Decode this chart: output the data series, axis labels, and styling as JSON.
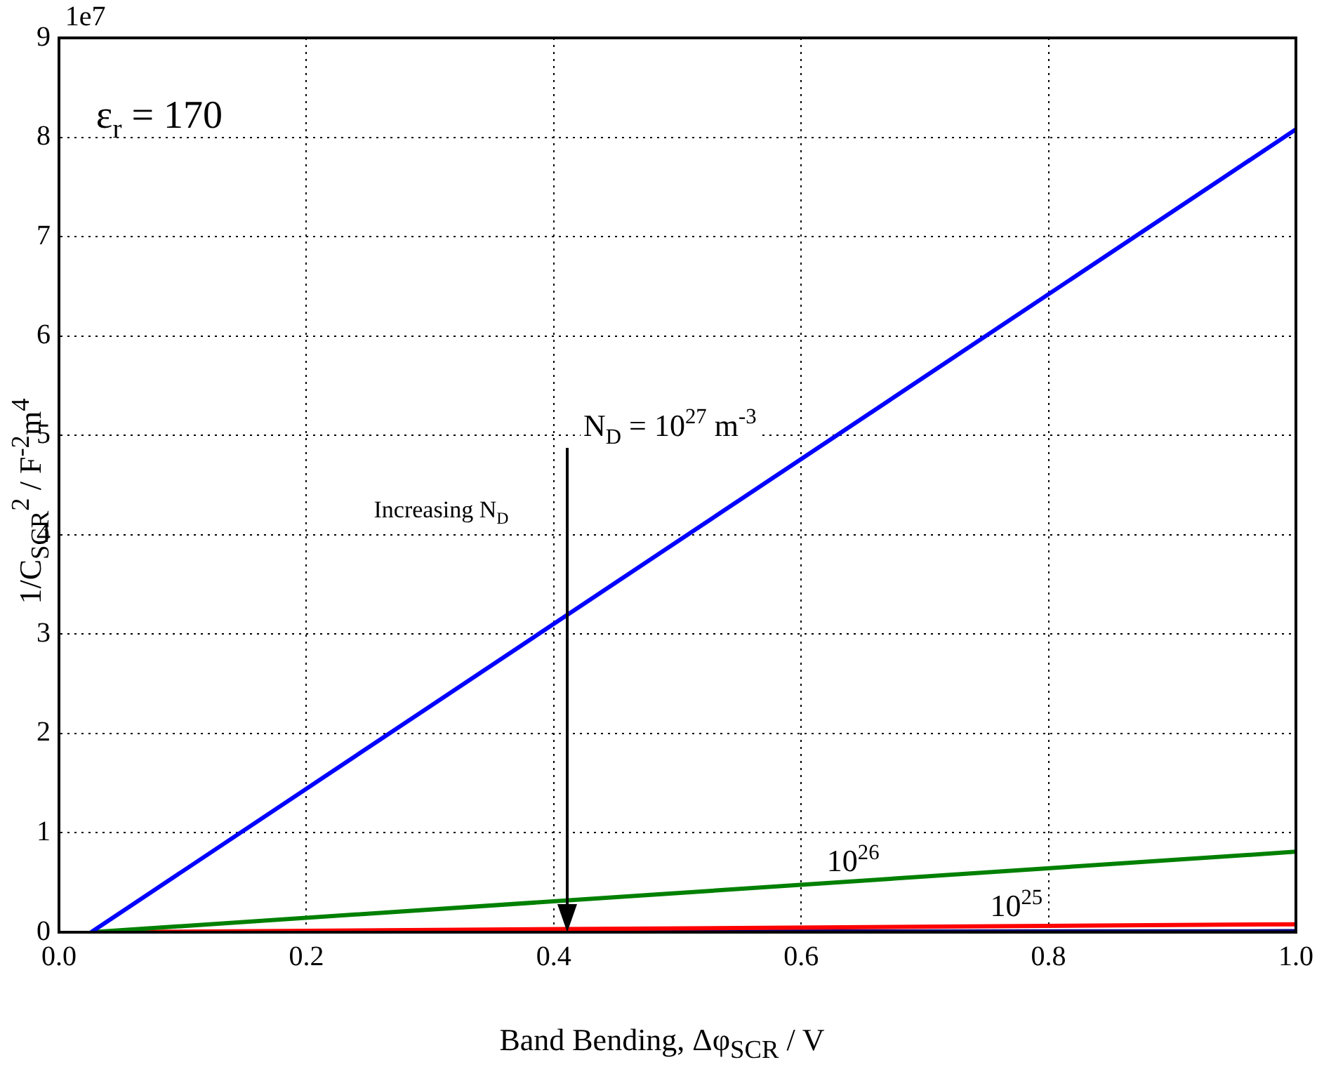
{
  "chart_data": {
    "type": "line",
    "xlabel": "Band Bending, Δφ$_{SCR}$ / V",
    "ylabel": "1/C$_{SCR}$$^{2}$ / F$^{-2}$m$^{4}$",
    "x": [
      0.026,
      1.0
    ],
    "series": [
      {
        "color": "#0000ff",
        "values": [
          0,
          8.08
        ]
      },
      {
        "color": "#008000",
        "values": [
          0,
          0.81
        ]
      },
      {
        "color": "#ff0000",
        "values": [
          0,
          0.08
        ]
      },
      {
        "color": "#000080",
        "values": [
          0,
          0.01
        ]
      }
    ],
    "xlim": [
      0,
      1
    ],
    "ylim": [
      0,
      9
    ],
    "xticks": [
      {
        "value": 0,
        "label": "0.0"
      },
      0.2,
      0.4,
      0.6,
      0.8,
      {
        "value": 1,
        "label": "1.0"
      }
    ],
    "yticks": [
      0,
      1,
      2,
      3,
      4,
      5,
      6,
      7,
      8,
      9
    ],
    "grid": true,
    "marker": "none",
    "line_style": "solid",
    "annotations": [
      "1e7",
      "ε$_{r}$ = 170",
      "N$_{D}$ = 10$^{27}$ m$^{-3}$",
      "Increasing N$_{D}$",
      "10$^{26}$",
      "10$^{25}$"
    ]
  }
}
